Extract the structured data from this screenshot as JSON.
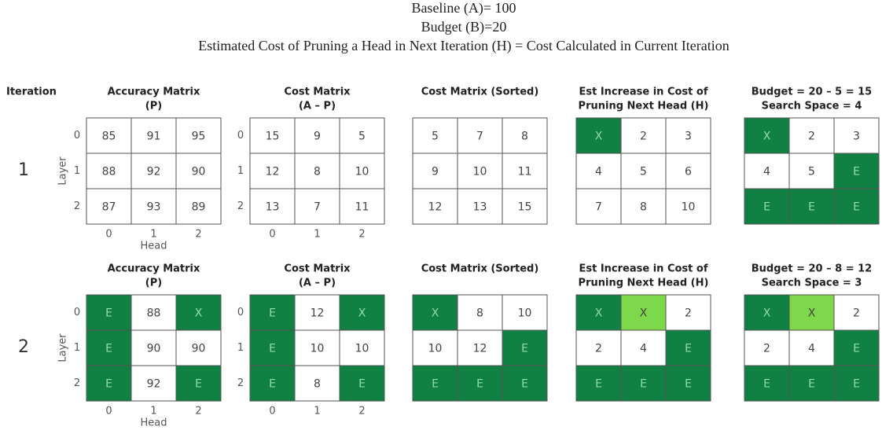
{
  "header": {
    "lines": [
      "Baseline (A)= 100",
      "Budget (B)=20",
      "Estimated Cost of Pruning a Head in Next Iteration (H) = Cost Calculated in Current Iteration"
    ]
  },
  "iteration_label": "Iteration",
  "iterations": [
    {
      "label": "1",
      "matrices": [
        {
          "title": [
            "Accuracy Matrix",
            "(P)"
          ],
          "row_labels": [
            "0",
            "1",
            "2"
          ],
          "col_labels": [
            "0",
            "1",
            "2"
          ],
          "row_axis": "Layer",
          "col_axis": "Head",
          "cells": [
            [
              "85",
              "91",
              "95"
            ],
            [
              "88",
              "92",
              "90"
            ],
            [
              "87",
              "93",
              "89"
            ]
          ],
          "fills": [
            [
              null,
              null,
              null
            ],
            [
              null,
              null,
              null
            ],
            [
              null,
              null,
              null
            ]
          ]
        },
        {
          "title": [
            "Cost Matrix",
            "(A – P)"
          ],
          "row_labels": [
            "0",
            "1",
            "2"
          ],
          "col_labels": [
            "0",
            "1",
            "2"
          ],
          "cells": [
            [
              "15",
              "9",
              "5"
            ],
            [
              "12",
              "8",
              "10"
            ],
            [
              "13",
              "7",
              "11"
            ]
          ],
          "fills": [
            [
              null,
              null,
              null
            ],
            [
              null,
              null,
              null
            ],
            [
              null,
              null,
              null
            ]
          ]
        },
        {
          "title": [
            "Cost Matrix (Sorted)"
          ],
          "cells": [
            [
              "5",
              "7",
              "8"
            ],
            [
              "9",
              "10",
              "11"
            ],
            [
              "12",
              "13",
              "15"
            ]
          ],
          "fills": [
            [
              null,
              null,
              null
            ],
            [
              null,
              null,
              null
            ],
            [
              null,
              null,
              null
            ]
          ]
        },
        {
          "title": [
            "Est Increase in Cost of",
            "Pruning Next Head (H)"
          ],
          "cells": [
            [
              "X",
              "2",
              "3"
            ],
            [
              "4",
              "5",
              "6"
            ],
            [
              "7",
              "8",
              "10"
            ]
          ],
          "fills": [
            [
              "#118043",
              null,
              null
            ],
            [
              null,
              null,
              null
            ],
            [
              null,
              null,
              null
            ]
          ]
        },
        {
          "title": [
            "Budget = 20 – 5 = 15",
            "Search Space = 4"
          ],
          "cells": [
            [
              "X",
              "2",
              "3"
            ],
            [
              "4",
              "5",
              "E"
            ],
            [
              "E",
              "E",
              "E"
            ]
          ],
          "fills": [
            [
              "#118043",
              null,
              null
            ],
            [
              null,
              null,
              "#118043"
            ],
            [
              "#118043",
              "#118043",
              "#118043"
            ]
          ]
        }
      ]
    },
    {
      "label": "2",
      "matrices": [
        {
          "title": [
            "Accuracy Matrix",
            "(P)"
          ],
          "row_labels": [
            "0",
            "1",
            "2"
          ],
          "col_labels": [
            "0",
            "1",
            "2"
          ],
          "row_axis": "Layer",
          "col_axis": "Head",
          "cells": [
            [
              "E",
              "88",
              "X"
            ],
            [
              "E",
              "90",
              "90"
            ],
            [
              "E",
              "92",
              "E"
            ]
          ],
          "fills": [
            [
              "#118043",
              null,
              "#118043"
            ],
            [
              "#118043",
              null,
              null
            ],
            [
              "#118043",
              null,
              "#118043"
            ]
          ]
        },
        {
          "title": [
            "Cost Matrix",
            "(A – P)"
          ],
          "row_labels": [
            "0",
            "1",
            "2"
          ],
          "col_labels": [
            "0",
            "1",
            "2"
          ],
          "cells": [
            [
              "E",
              "12",
              "X"
            ],
            [
              "E",
              "10",
              "10"
            ],
            [
              "E",
              "8",
              "E"
            ]
          ],
          "fills": [
            [
              "#118043",
              null,
              "#118043"
            ],
            [
              "#118043",
              null,
              null
            ],
            [
              "#118043",
              null,
              "#118043"
            ]
          ]
        },
        {
          "title": [
            "Cost Matrix (Sorted)"
          ],
          "cells": [
            [
              "X",
              "8",
              "10"
            ],
            [
              "10",
              "12",
              "E"
            ],
            [
              "E",
              "E",
              "E"
            ]
          ],
          "fills": [
            [
              "#118043",
              null,
              null
            ],
            [
              null,
              null,
              "#118043"
            ],
            [
              "#118043",
              "#118043",
              "#118043"
            ]
          ]
        },
        {
          "title": [
            "Est Increase in Cost of",
            "Pruning Next Head (H)"
          ],
          "cells": [
            [
              "X",
              "X",
              "2"
            ],
            [
              "2",
              "4",
              "E"
            ],
            [
              "E",
              "E",
              "E"
            ]
          ],
          "fills": [
            [
              "#118043",
              "#7ed84b",
              null
            ],
            [
              null,
              null,
              "#118043"
            ],
            [
              "#118043",
              "#118043",
              "#118043"
            ]
          ]
        },
        {
          "title": [
            "Budget = 20 – 8 = 12",
            "Search Space = 3"
          ],
          "cells": [
            [
              "X",
              "X",
              "2"
            ],
            [
              "2",
              "4",
              "E"
            ],
            [
              "E",
              "E",
              "E"
            ]
          ],
          "fills": [
            [
              "#118043",
              "#7ed84b",
              null
            ],
            [
              null,
              null,
              "#118043"
            ],
            [
              "#118043",
              "#118043",
              "#118043"
            ]
          ]
        }
      ]
    }
  ]
}
